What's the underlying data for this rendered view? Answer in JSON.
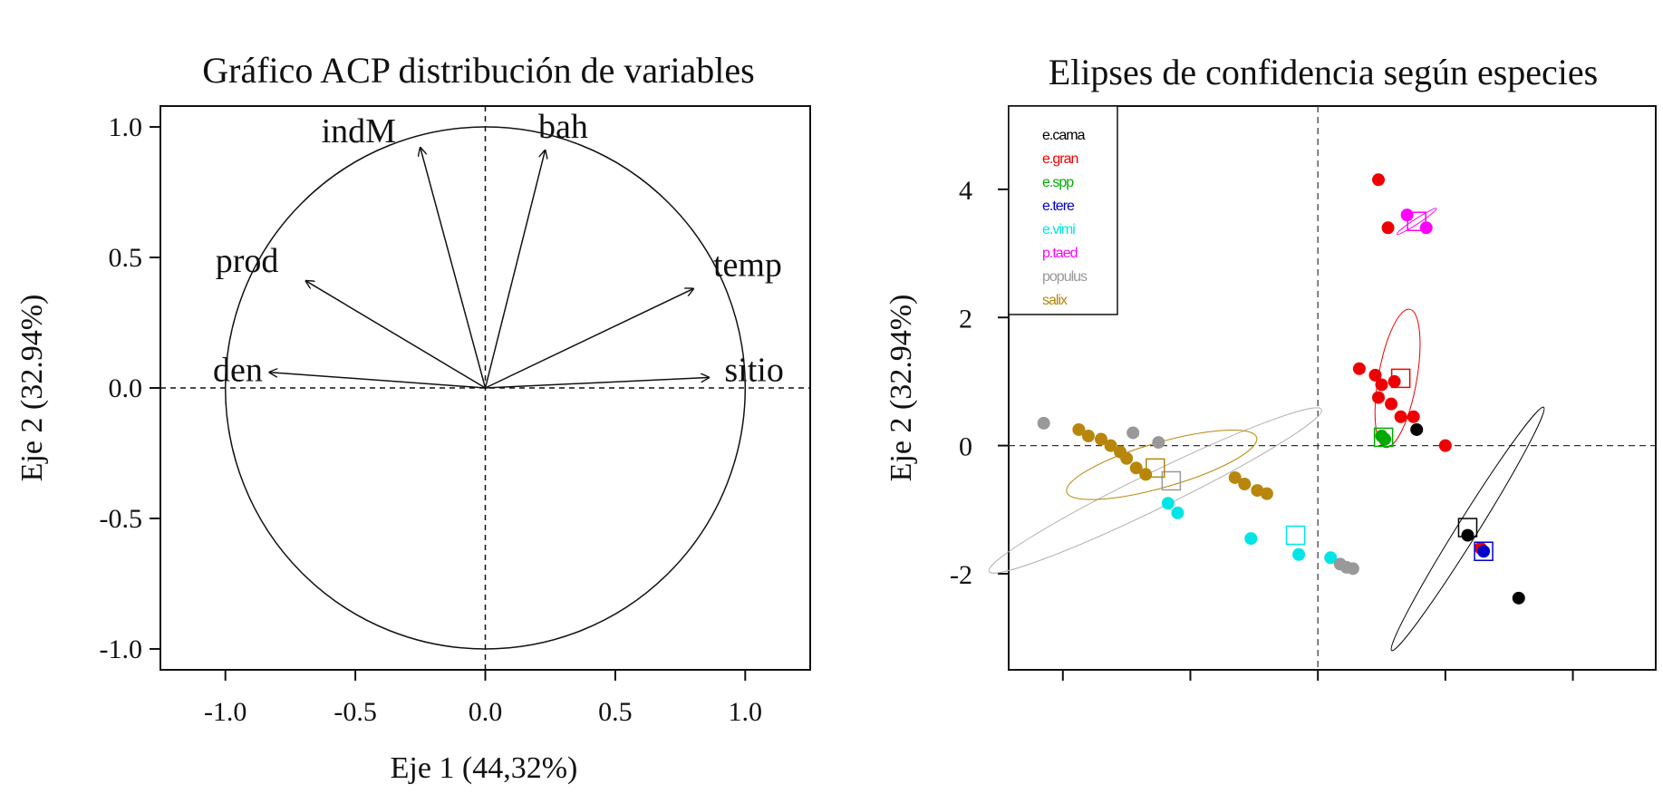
{
  "chart_data": [
    {
      "type": "scatter",
      "title": "Gráfico ACP distribución de variables",
      "xlabel": "Eje 1 (44,32%)",
      "ylabel": "Eje 2 (32.94%)",
      "xlim": [
        -1.25,
        1.25
      ],
      "ylim": [
        -1.08,
        1.08
      ],
      "xticks": [
        -1.0,
        -0.5,
        0.0,
        0.5,
        1.0
      ],
      "yticks": [
        -1.0,
        -0.5,
        0.0,
        0.5,
        1.0
      ],
      "xtick_labels": [
        "-1.0",
        "-0.5",
        "0.0",
        "0.5",
        "1.0"
      ],
      "ytick_labels": [
        "-1.0",
        "-0.5",
        "0.0",
        "0.5",
        "1.0"
      ],
      "vectors": [
        {
          "name": "indM",
          "x": -0.25,
          "y": 0.92
        },
        {
          "name": "bah",
          "x": 0.23,
          "y": 0.91
        },
        {
          "name": "prod",
          "x": -0.69,
          "y": 0.41
        },
        {
          "name": "temp",
          "x": 0.8,
          "y": 0.38
        },
        {
          "name": "den",
          "x": -0.83,
          "y": 0.06
        },
        {
          "name": "sitio",
          "x": 0.86,
          "y": 0.04
        }
      ]
    },
    {
      "type": "scatter",
      "title": "Elipses de confidencia según especies",
      "xlabel": "",
      "ylabel": "Eje 2 (32.94%)",
      "xlim": [
        -4.85,
        5.3
      ],
      "ylim": [
        -3.5,
        5.3
      ],
      "xticks": [
        -4,
        -2,
        0,
        2,
        4
      ],
      "xtick_labels": [
        "",
        "",
        "",
        "",
        ""
      ],
      "yticks": [
        -2,
        0,
        2,
        4
      ],
      "ytick_labels": [
        "-2",
        "0",
        "2",
        "4"
      ],
      "legend": "top-left",
      "series": [
        {
          "name": "e.cama",
          "color": "#000000",
          "points": [
            [
              1.55,
              0.25
            ],
            [
              2.35,
              -1.4
            ],
            [
              3.15,
              -2.38
            ]
          ],
          "centroid": [
            2.35,
            -1.28
          ],
          "ellipse": {
            "cx": 2.35,
            "cy": -1.3,
            "rx": 2.25,
            "ry": 0.16,
            "angle": -58
          }
        },
        {
          "name": "e.gran",
          "color": "#ee0000",
          "points": [
            [
              0.95,
              4.15
            ],
            [
              1.1,
              3.4
            ],
            [
              0.65,
              1.2
            ],
            [
              0.9,
              1.1
            ],
            [
              1.0,
              0.95
            ],
            [
              1.2,
              1.0
            ],
            [
              0.95,
              0.75
            ],
            [
              1.15,
              0.65
            ],
            [
              1.3,
              0.45
            ],
            [
              1.5,
              0.45
            ],
            [
              2.0,
              0.0
            ],
            [
              2.55,
              -1.6
            ]
          ],
          "centroid": [
            1.3,
            1.05
          ],
          "ellipse": {
            "cx": 1.25,
            "cy": 1.05,
            "rx": 1.1,
            "ry": 0.3,
            "angle": -80
          }
        },
        {
          "name": "e.spp",
          "color": "#00aa00",
          "points": [
            [
              1.0,
              0.15
            ],
            [
              1.05,
              0.1
            ]
          ],
          "centroid": [
            1.03,
            0.13
          ]
        },
        {
          "name": "e.tere",
          "color": "#0000cc",
          "points": [
            [
              2.6,
              -1.65
            ]
          ],
          "centroid": [
            2.6,
            -1.65
          ]
        },
        {
          "name": "e.vimi",
          "color": "#00e5e5",
          "points": [
            [
              -2.35,
              -0.9
            ],
            [
              -2.2,
              -1.05
            ],
            [
              -1.05,
              -1.45
            ],
            [
              -0.3,
              -1.7
            ],
            [
              0.2,
              -1.75
            ]
          ],
          "centroid": [
            -0.35,
            -1.4
          ]
        },
        {
          "name": "p.taed",
          "color": "#ff00ff",
          "points": [
            [
              1.4,
              3.6
            ],
            [
              1.7,
              3.4
            ]
          ],
          "centroid": [
            1.55,
            3.5
          ],
          "ellipse": {
            "cx": 1.55,
            "cy": 3.5,
            "rx": 0.37,
            "ry": 0.04,
            "angle": -33
          }
        },
        {
          "name": "populus",
          "color": "#999999",
          "points": [
            [
              -4.3,
              0.35
            ],
            [
              -2.9,
              0.2
            ],
            [
              -2.5,
              0.05
            ],
            [
              0.35,
              -1.85
            ],
            [
              0.45,
              -1.9
            ],
            [
              0.55,
              -1.92
            ]
          ],
          "centroid": [
            -2.3,
            -0.55
          ]
        },
        {
          "name": "salix",
          "color": "#b8860b",
          "points": [
            [
              -3.75,
              0.25
            ],
            [
              -3.6,
              0.15
            ],
            [
              -3.4,
              0.1
            ],
            [
              -3.25,
              0.0
            ],
            [
              -3.1,
              -0.1
            ],
            [
              -3.0,
              -0.2
            ],
            [
              -2.85,
              -0.35
            ],
            [
              -2.7,
              -0.45
            ],
            [
              -1.3,
              -0.5
            ],
            [
              -1.15,
              -0.6
            ],
            [
              -0.95,
              -0.7
            ],
            [
              -0.8,
              -0.75
            ]
          ],
          "centroid": [
            -2.55,
            -0.35
          ],
          "ellipse": {
            "cx": -2.45,
            "cy": -0.3,
            "rx": 1.55,
            "ry": 0.35,
            "angle": -16
          }
        }
      ],
      "extra_ellipse": {
        "cx": -2.55,
        "cy": -0.7,
        "rx": 2.9,
        "ry": 0.28,
        "angle": -26,
        "color": "#b0b0b0"
      }
    }
  ]
}
